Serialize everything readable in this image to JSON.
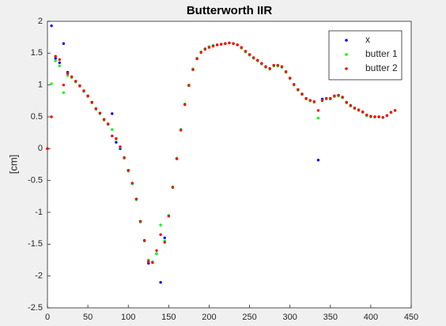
{
  "chart_data": {
    "type": "scatter",
    "title": "Butterworth IIR",
    "y_label": "[cm]",
    "x": [
      0,
      5,
      10,
      15,
      20,
      25,
      30,
      35,
      40,
      45,
      50,
      55,
      60,
      65,
      70,
      75,
      80,
      85,
      90,
      95,
      100,
      105,
      110,
      115,
      120,
      125,
      130,
      135,
      140,
      145,
      150,
      155,
      160,
      165,
      170,
      175,
      180,
      185,
      190,
      195,
      200,
      205,
      210,
      215,
      220,
      225,
      230,
      235,
      240,
      245,
      250,
      255,
      260,
      265,
      270,
      275,
      280,
      285,
      290,
      295,
      300,
      305,
      310,
      315,
      320,
      325,
      330,
      335,
      340,
      345,
      350,
      355,
      360,
      365,
      370,
      375,
      380,
      385,
      390,
      395,
      400,
      405,
      410,
      415,
      420,
      425,
      430
    ],
    "series": [
      {
        "name": "x",
        "color": "#0000ff",
        "values": [
          0.0,
          1.93,
          1.42,
          1.35,
          1.65,
          1.2,
          1.12,
          1.05,
          0.98,
          0.9,
          0.82,
          0.72,
          0.62,
          0.55,
          0.45,
          0.38,
          0.55,
          0.1,
          0.0,
          -0.15,
          -0.35,
          -0.55,
          -0.8,
          -1.15,
          -1.45,
          -1.8,
          -1.78,
          -1.65,
          -2.1,
          -1.4,
          -1.05,
          -0.6,
          -0.15,
          0.3,
          0.7,
          1.0,
          1.25,
          1.42,
          1.52,
          1.57,
          1.6,
          1.62,
          1.63,
          1.64,
          1.65,
          1.66,
          1.65,
          1.63,
          1.58,
          1.52,
          1.47,
          1.42,
          1.38,
          1.33,
          1.28,
          1.25,
          1.3,
          1.3,
          1.28,
          1.2,
          1.1,
          1.0,
          0.92,
          0.85,
          0.78,
          0.75,
          0.73,
          -0.18,
          0.78,
          0.78,
          0.78,
          0.82,
          0.83,
          0.8,
          0.72,
          0.67,
          0.63,
          0.6,
          0.57,
          0.52,
          0.5,
          0.5,
          0.5,
          0.49,
          0.52,
          0.57,
          0.6
        ]
      },
      {
        "name": "butter 1",
        "color": "#00ff00",
        "values": [
          0.0,
          1.02,
          1.38,
          1.3,
          0.88,
          1.15,
          1.12,
          1.05,
          0.98,
          0.9,
          0.82,
          0.72,
          0.62,
          0.55,
          0.45,
          0.38,
          0.3,
          0.15,
          0.02,
          -0.15,
          -0.35,
          -0.55,
          -0.8,
          -1.15,
          -1.45,
          -1.75,
          -1.78,
          -1.65,
          -1.2,
          -1.45,
          -1.05,
          -0.6,
          -0.15,
          0.3,
          0.7,
          1.0,
          1.25,
          1.42,
          1.52,
          1.57,
          1.6,
          1.62,
          1.63,
          1.64,
          1.65,
          1.66,
          1.65,
          1.63,
          1.58,
          1.52,
          1.47,
          1.42,
          1.38,
          1.33,
          1.28,
          1.25,
          1.3,
          1.3,
          1.28,
          1.2,
          1.1,
          1.0,
          0.92,
          0.85,
          0.78,
          0.75,
          0.73,
          0.48,
          0.75,
          0.78,
          0.78,
          0.82,
          0.83,
          0.8,
          0.72,
          0.67,
          0.63,
          0.6,
          0.57,
          0.52,
          0.5,
          0.5,
          0.5,
          0.49,
          0.52,
          0.57,
          0.6
        ]
      },
      {
        "name": "butter 2",
        "color": "#ff0000",
        "values": [
          0.0,
          0.5,
          1.45,
          1.4,
          1.0,
          1.18,
          1.13,
          1.06,
          0.99,
          0.91,
          0.83,
          0.73,
          0.63,
          0.56,
          0.46,
          0.39,
          0.2,
          0.16,
          0.03,
          -0.14,
          -0.34,
          -0.54,
          -0.79,
          -1.14,
          -1.44,
          -1.77,
          -1.79,
          -1.6,
          -1.35,
          -1.47,
          -1.06,
          -0.61,
          -0.16,
          0.29,
          0.69,
          0.99,
          1.24,
          1.41,
          1.51,
          1.56,
          1.59,
          1.61,
          1.63,
          1.64,
          1.65,
          1.66,
          1.65,
          1.63,
          1.59,
          1.53,
          1.48,
          1.43,
          1.39,
          1.34,
          1.29,
          1.26,
          1.31,
          1.31,
          1.29,
          1.21,
          1.11,
          1.01,
          0.93,
          0.86,
          0.79,
          0.76,
          0.74,
          0.6,
          0.76,
          0.79,
          0.79,
          0.83,
          0.84,
          0.81,
          0.73,
          0.68,
          0.64,
          0.61,
          0.58,
          0.53,
          0.51,
          0.5,
          0.5,
          0.49,
          0.52,
          0.57,
          0.6
        ]
      }
    ],
    "xlim": [
      0,
      450
    ],
    "ylim": [
      -2.5,
      2
    ],
    "xticks": [
      0,
      50,
      100,
      150,
      200,
      250,
      300,
      350,
      400,
      450
    ],
    "yticks": [
      -2.5,
      -2,
      -1.5,
      -1,
      -0.5,
      0,
      0.5,
      1,
      1.5,
      2
    ],
    "legend": "northeast"
  }
}
